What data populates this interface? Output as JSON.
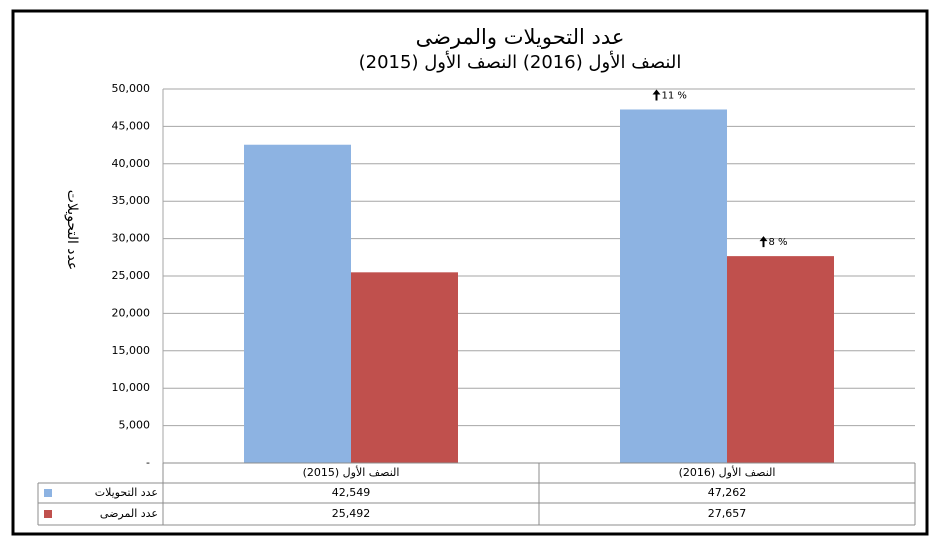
{
  "chart_data": {
    "type": "bar",
    "title": "عدد التحويلات والمرضى",
    "subtitle": "النصف الأول (2016)   النصف الأول (2015)",
    "y_label": "عدد التحويلات",
    "categories": [
      "النصف الأول (2015)",
      "النصف الأول (2016)"
    ],
    "series": [
      {
        "name": "عدد التحويلات",
        "color": "#8db3e2",
        "values": [
          42549,
          47262
        ],
        "value_labels": [
          "42,549",
          "47,262"
        ],
        "annotations": [
          null,
          "11 %"
        ]
      },
      {
        "name": "عدد المرضى",
        "color": "#c0504d",
        "values": [
          25492,
          27657
        ],
        "value_labels": [
          "25,492",
          "27,657"
        ],
        "annotations": [
          null,
          "8 %"
        ]
      }
    ],
    "ylim": [
      0,
      50000
    ],
    "yticks": [
      {
        "value": 0,
        "label": "-"
      },
      {
        "value": 5000,
        "label": "5,000"
      },
      {
        "value": 10000,
        "label": "10,000"
      },
      {
        "value": 15000,
        "label": "15,000"
      },
      {
        "value": 20000,
        "label": "20,000"
      },
      {
        "value": 25000,
        "label": "25,000"
      },
      {
        "value": 30000,
        "label": "30,000"
      },
      {
        "value": 35000,
        "label": "35,000"
      },
      {
        "value": 40000,
        "label": "40,000"
      },
      {
        "value": 45000,
        "label": "45,000"
      },
      {
        "value": 50000,
        "label": "50,000"
      }
    ],
    "grid": true
  }
}
